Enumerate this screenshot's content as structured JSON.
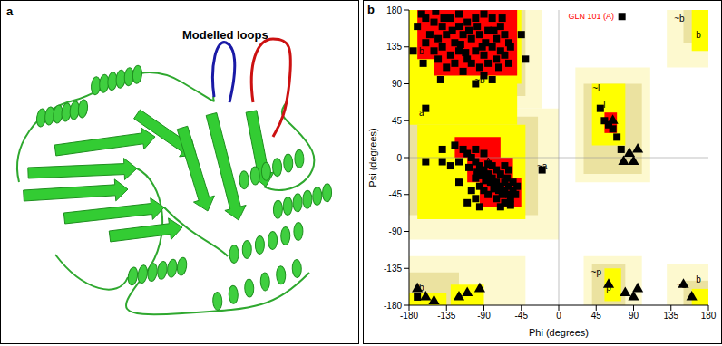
{
  "figure": {
    "panel_labels": [
      "a",
      "b"
    ],
    "structure_annotation": "Modelled loops"
  },
  "chart_data": {
    "type": "scatter",
    "xlabel": "Phi (degrees)",
    "ylabel": "Psi (degrees)",
    "xlim": [
      -180,
      180
    ],
    "ylim": [
      -180,
      180
    ],
    "xticks": [
      -180,
      -135,
      -90,
      -45,
      0,
      45,
      90,
      135,
      180
    ],
    "yticks": [
      -180,
      -135,
      -90,
      -45,
      0,
      45,
      90,
      135,
      180
    ],
    "grid": false,
    "reference_lines": {
      "x": [
        0
      ],
      "y": [
        0
      ]
    },
    "regions": [
      {
        "color": "#fdf9cf",
        "rects": [
          [
            -180,
            -20,
            60,
            180
          ],
          [
            -180,
            0,
            -100,
            60
          ],
          [
            -180,
            -40,
            -180,
            -120
          ],
          [
            20,
            110,
            -30,
            110
          ],
          [
            30,
            100,
            -180,
            -120
          ],
          [
            130,
            180,
            -180,
            -130
          ],
          [
            130,
            180,
            110,
            180
          ]
        ]
      },
      {
        "color": "#ebe2a0",
        "rects": [
          [
            -180,
            -40,
            75,
            180
          ],
          [
            -180,
            -25,
            -70,
            50
          ],
          [
            -180,
            -120,
            -180,
            -140
          ],
          [
            30,
            100,
            -20,
            90
          ],
          [
            40,
            80,
            -180,
            -130
          ],
          [
            150,
            180,
            -180,
            -150
          ],
          [
            150,
            180,
            140,
            180
          ]
        ]
      },
      {
        "color": "#ffff00",
        "rects": [
          [
            -180,
            -45,
            90,
            180
          ],
          [
            -180,
            -50,
            40,
            95
          ],
          [
            -170,
            -40,
            -75,
            40
          ],
          [
            40,
            80,
            15,
            90
          ],
          [
            55,
            75,
            -175,
            -135
          ],
          [
            -180,
            -135,
            -180,
            -165
          ],
          [
            -130,
            -90,
            -180,
            -155
          ],
          [
            160,
            180,
            130,
            180
          ],
          [
            160,
            180,
            -180,
            -160
          ]
        ]
      },
      {
        "color": "#ff0000",
        "rects": [
          [
            -150,
            -50,
            100,
            180
          ],
          [
            -170,
            -150,
            120,
            180
          ],
          [
            -95,
            -45,
            -60,
            -25
          ],
          [
            -110,
            -55,
            -30,
            0
          ],
          [
            -125,
            -70,
            0,
            25
          ],
          [
            55,
            70,
            30,
            55
          ]
        ]
      }
    ],
    "region_labels": [
      {
        "label": "b",
        "x": -165,
        "y": 130
      },
      {
        "label": "~b",
        "x": -95,
        "y": 95
      },
      {
        "label": "a",
        "x": -165,
        "y": 55
      },
      {
        "label": "A",
        "x": -85,
        "y": -5
      },
      {
        "label": "~a",
        "x": -20,
        "y": -10
      },
      {
        "label": "~l",
        "x": 45,
        "y": 85
      },
      {
        "label": "l",
        "x": 55,
        "y": 65
      },
      {
        "label": "~p",
        "x": 45,
        "y": -140
      },
      {
        "label": "p",
        "x": 60,
        "y": -158
      },
      {
        "label": "~b",
        "x": 148,
        "y": -155
      },
      {
        "label": "b",
        "x": 168,
        "y": -148
      },
      {
        "label": "~b",
        "x": 145,
        "y": 170
      },
      {
        "label": "b",
        "x": 168,
        "y": 150
      },
      {
        "label": "b",
        "x": -165,
        "y": -158
      }
    ],
    "annotations": [
      {
        "text": "GLN 101 (A)",
        "x": 72,
        "y": 172,
        "color": "#ff0000"
      }
    ],
    "series": [
      {
        "marker": "square",
        "color": "#000000",
        "x": [
          -160,
          -150,
          -140,
          -130,
          -120,
          -110,
          -100,
          -90,
          -80,
          -70,
          -155,
          -145,
          -135,
          -125,
          -115,
          -105,
          -95,
          -85,
          -75,
          -65,
          -150,
          -140,
          -130,
          -120,
          -110,
          -100,
          -90,
          -80,
          -70,
          -60,
          -125,
          -115,
          -105,
          -95,
          -85,
          -75,
          -65,
          -135,
          -145,
          -160,
          -170,
          -90,
          -80,
          -100,
          -120,
          -108,
          -88,
          -138,
          -148,
          -128,
          -118,
          -98,
          -78,
          -68,
          -58,
          -112,
          -92,
          -72,
          -142,
          -60,
          -175,
          -163,
          -165,
          -65,
          -60,
          -70,
          -75,
          -80,
          -85,
          -90,
          -95,
          -100,
          -105,
          -65,
          -60,
          -55,
          -58,
          -68,
          -72,
          -78,
          -82,
          -88,
          -92,
          -98,
          -62,
          -70,
          -75,
          -85,
          -110,
          -115,
          -120,
          -108,
          -100,
          -95,
          -90,
          -85,
          -75,
          -65,
          -55,
          -52,
          -60,
          -80,
          -125,
          -130,
          -140,
          -120,
          -105,
          -100,
          -140,
          -160,
          -95,
          -110,
          -70,
          -65,
          -50,
          -58,
          -100,
          -90,
          -170,
          60,
          55,
          65,
          70,
          50,
          75,
          -160,
          -40,
          -45,
          -20,
          76
        ],
        "y": [
          170,
          165,
          160,
          170,
          175,
          165,
          170,
          175,
          170,
          160,
          150,
          145,
          150,
          140,
          150,
          145,
          150,
          155,
          145,
          150,
          130,
          135,
          125,
          130,
          120,
          130,
          125,
          135,
          130,
          140,
          115,
          105,
          115,
          110,
          115,
          120,
          125,
          110,
          120,
          140,
          160,
          100,
          95,
          90,
          160,
          155,
          140,
          170,
          178,
          155,
          138,
          160,
          155,
          170,
          135,
          128,
          135,
          110,
          95,
          115,
          130,
          115,
          175,
          -40,
          -45,
          -35,
          -30,
          -25,
          -20,
          -15,
          -10,
          -5,
          0,
          -30,
          -35,
          -40,
          -50,
          -45,
          -40,
          -38,
          -30,
          -28,
          -22,
          -18,
          -25,
          -20,
          -15,
          -8,
          5,
          10,
          -5,
          -12,
          -25,
          -35,
          -40,
          -45,
          -50,
          -55,
          -30,
          -45,
          -15,
          -10,
          15,
          -10,
          -5,
          -30,
          -40,
          -50,
          10,
          -5,
          -60,
          -55,
          -60,
          -10,
          -35,
          -58,
          10,
          5,
          -170,
          40,
          45,
          35,
          25,
          60,
          10,
          60,
          120,
          150,
          -15,
          172
        ]
      },
      {
        "marker": "triangle",
        "color": "#000000",
        "x": [
          85,
          90,
          78,
          95,
          -170,
          -160,
          -150,
          -120,
          -110,
          -95,
          60,
          80,
          90,
          95,
          150,
          160,
          65
        ],
        "y": [
          5,
          -5,
          -5,
          10,
          -160,
          -170,
          -175,
          -170,
          -165,
          -160,
          -155,
          -165,
          -170,
          -160,
          -155,
          -170,
          45
        ]
      }
    ]
  }
}
